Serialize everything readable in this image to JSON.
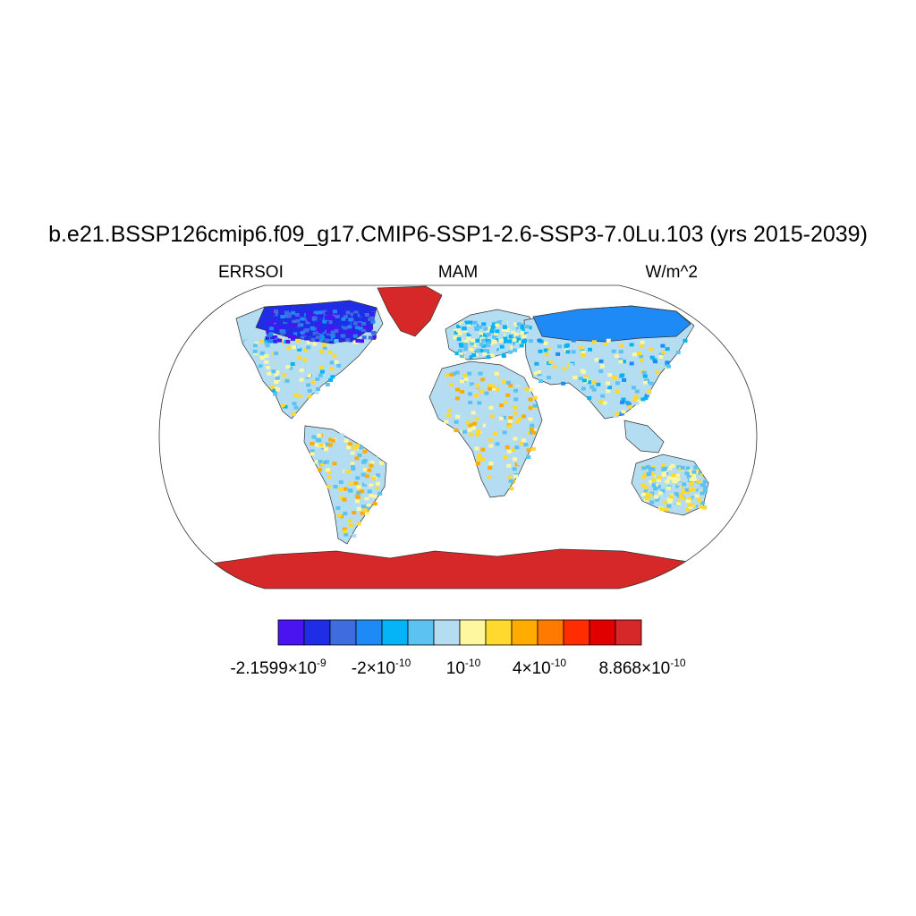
{
  "title": "b.e21.BSSP126cmip6.f09_g17.CMIP6-SSP1-2.6-SSP3-7.0Lu.103 (yrs 2015-2039)",
  "left_label": "ERRSOI",
  "center_label": "MAM",
  "right_label": "W/m^2",
  "colorbar": {
    "colors": [
      "#4a14f0",
      "#1f2de6",
      "#3f6de0",
      "#1e8af5",
      "#05b4f7",
      "#5cc2f2",
      "#b4ddf2",
      "#fff7a0",
      "#ffd92e",
      "#ffab00",
      "#ff7a00",
      "#ff2d00",
      "#e00000",
      "#d62828"
    ],
    "labels": [
      {
        "mantissa": "-2.1599",
        "exp": "-9"
      },
      {
        "mantissa": "-2",
        "exp": "-10"
      },
      {
        "mantissa": "",
        "exp": "-10"
      },
      {
        "mantissa": "4",
        "exp": "-10"
      },
      {
        "mantissa": "8.868",
        "exp": "-10"
      }
    ]
  },
  "map": {
    "projection": "Robinson",
    "land_color": "#b4ddf2",
    "ocean_color": "#ffffff",
    "greenland_color": "#d62828",
    "antarctica_color": "#d62828",
    "north_high_latitude_color": "#1f2de6"
  }
}
